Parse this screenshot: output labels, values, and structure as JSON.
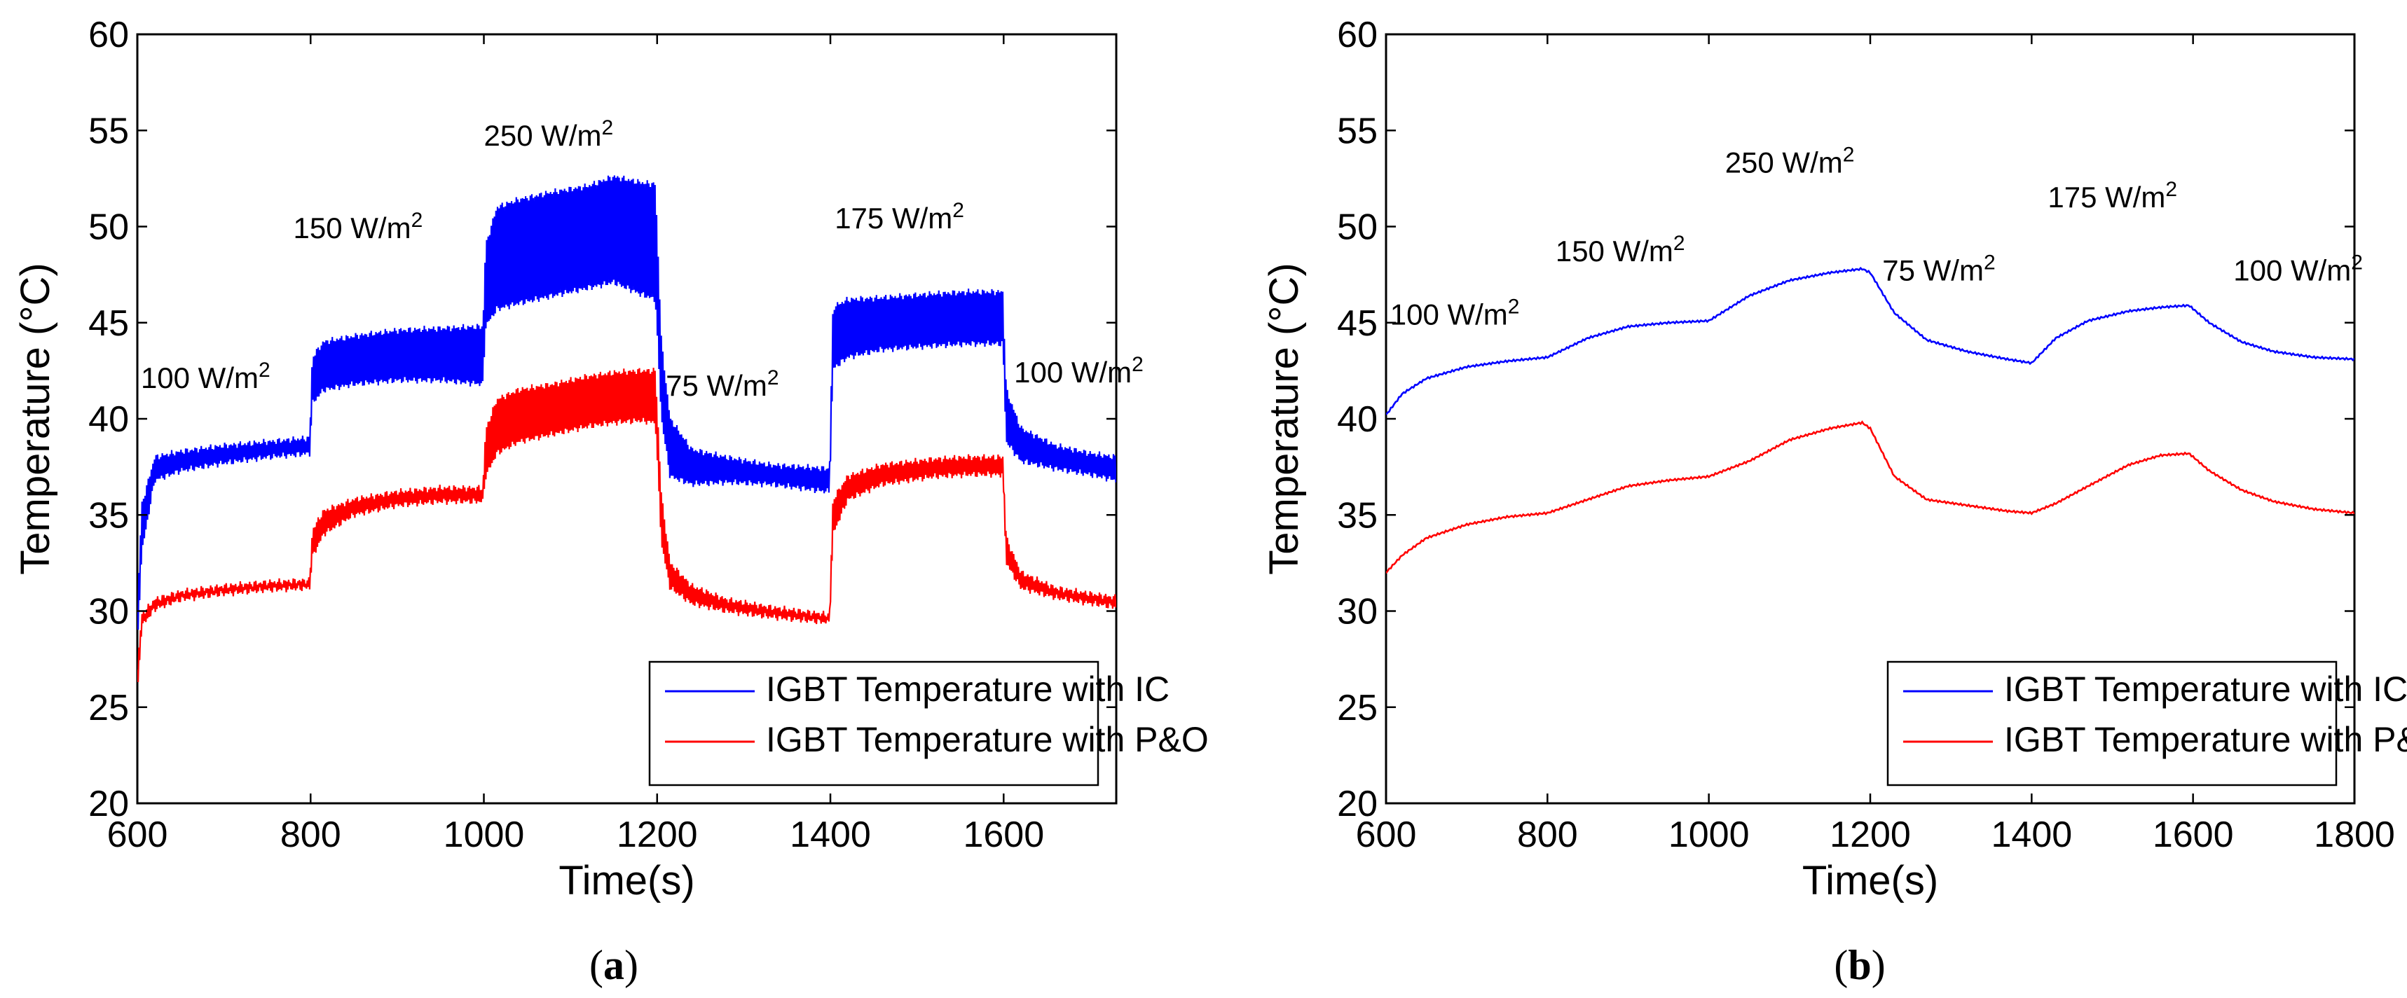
{
  "chart_data": [
    {
      "type": "line",
      "caption_prefix": "(",
      "caption_letter": "a",
      "caption_suffix": ")",
      "xlabel": "Time(s)",
      "ylabel": "Temperature (°C)",
      "xlim": [
        600,
        1730
      ],
      "ylim": [
        20,
        60
      ],
      "xticks": [
        600,
        800,
        1000,
        1200,
        1400,
        1600
      ],
      "yticks": [
        20,
        25,
        30,
        35,
        40,
        45,
        50,
        55,
        60
      ],
      "legend_position": "bottom-right",
      "noise": true,
      "annotations": [
        {
          "text": "100 W/m",
          "sup": "2",
          "x": 604,
          "y": 41.6
        },
        {
          "text": "150 W/m",
          "sup": "2",
          "x": 780,
          "y": 49.4
        },
        {
          "text": "250 W/m",
          "sup": "2",
          "x": 1000,
          "y": 54.2
        },
        {
          "text": "75 W/m",
          "sup": "2",
          "x": 1210,
          "y": 41.2
        },
        {
          "text": "175 W/m",
          "sup": "2",
          "x": 1405,
          "y": 49.9
        },
        {
          "text": "100 W/m",
          "sup": "2",
          "x": 1612,
          "y": 41.9
        }
      ],
      "series": [
        {
          "name": "IGBT Temperature with IC",
          "color": "#0000ff",
          "x": [
            600,
            605,
            620,
            650,
            700,
            750,
            799,
            802,
            815,
            850,
            900,
            950,
            999,
            1002,
            1015,
            1040,
            1080,
            1120,
            1150,
            1180,
            1198,
            1205,
            1215,
            1240,
            1280,
            1330,
            1399,
            1403,
            1420,
            1460,
            1520,
            1560,
            1599,
            1603,
            1620,
            1660,
            1700,
            1730
          ],
          "upper": [
            30.0,
            35.5,
            38.0,
            38.3,
            38.6,
            38.8,
            39.0,
            43.2,
            44.0,
            44.3,
            44.6,
            44.7,
            44.8,
            49.0,
            51.0,
            51.4,
            51.8,
            52.1,
            52.6,
            52.3,
            52.2,
            44.0,
            40.0,
            38.4,
            38.0,
            37.6,
            37.4,
            45.8,
            46.2,
            46.3,
            46.5,
            46.6,
            46.6,
            41.5,
            39.5,
            38.6,
            38.2,
            38.0
          ],
          "lower": [
            28.0,
            33.0,
            36.8,
            37.3,
            37.7,
            38.0,
            38.2,
            40.8,
            41.5,
            41.8,
            42.0,
            42.0,
            41.8,
            44.8,
            45.7,
            46.0,
            46.4,
            46.8,
            47.1,
            46.5,
            46.2,
            40.0,
            37.0,
            36.6,
            36.7,
            36.6,
            36.2,
            42.6,
            43.2,
            43.6,
            43.8,
            43.9,
            43.9,
            38.8,
            37.8,
            37.4,
            37.1,
            36.8
          ]
        },
        {
          "name": "IGBT Temperature with P&O",
          "color": "#ff0000",
          "x": [
            600,
            605,
            620,
            650,
            700,
            750,
            799,
            802,
            815,
            850,
            900,
            950,
            999,
            1002,
            1015,
            1040,
            1080,
            1120,
            1150,
            1180,
            1198,
            1205,
            1215,
            1240,
            1280,
            1330,
            1399,
            1403,
            1420,
            1460,
            1520,
            1560,
            1599,
            1603,
            1620,
            1660,
            1700,
            1730
          ],
          "upper": [
            27.0,
            29.8,
            30.6,
            31.0,
            31.3,
            31.5,
            31.6,
            34.2,
            35.2,
            35.8,
            36.2,
            36.4,
            36.4,
            39.4,
            41.0,
            41.5,
            41.8,
            42.2,
            42.4,
            42.5,
            42.5,
            36.0,
            32.5,
            31.3,
            30.6,
            30.2,
            29.8,
            35.8,
            37.0,
            37.6,
            37.9,
            38.0,
            38.0,
            33.8,
            32.0,
            31.2,
            30.9,
            30.7
          ],
          "lower": [
            25.5,
            29.2,
            30.1,
            30.6,
            30.9,
            31.1,
            31.2,
            32.8,
            34.0,
            35.0,
            35.5,
            35.7,
            35.7,
            37.0,
            38.2,
            38.8,
            39.2,
            39.6,
            39.8,
            39.9,
            39.8,
            33.5,
            31.2,
            30.4,
            30.0,
            29.7,
            29.4,
            34.0,
            35.8,
            36.6,
            37.0,
            37.1,
            37.1,
            32.5,
            31.2,
            30.7,
            30.4,
            30.2
          ]
        }
      ]
    },
    {
      "type": "line",
      "caption_prefix": "(",
      "caption_letter": "b",
      "caption_suffix": ")",
      "xlabel": "Time(s)",
      "ylabel": "Temperature (°C)",
      "xlim": [
        600,
        1800
      ],
      "ylim": [
        20,
        60
      ],
      "xticks": [
        600,
        800,
        1000,
        1200,
        1400,
        1600,
        1800
      ],
      "yticks": [
        20,
        25,
        30,
        35,
        40,
        45,
        50,
        55,
        60
      ],
      "legend_position": "bottom-right",
      "noise": false,
      "annotations": [
        {
          "text": "100 W/m",
          "sup": "2",
          "x": 605,
          "y": 44.9
        },
        {
          "text": "150 W/m",
          "sup": "2",
          "x": 810,
          "y": 48.2
        },
        {
          "text": "250 W/m",
          "sup": "2",
          "x": 1020,
          "y": 52.8
        },
        {
          "text": "75 W/m",
          "sup": "2",
          "x": 1215,
          "y": 47.2
        },
        {
          "text": "175 W/m",
          "sup": "2",
          "x": 1420,
          "y": 51.0
        },
        {
          "text": "100 W/m",
          "sup": "2",
          "x": 1650,
          "y": 47.2
        }
      ],
      "series": [
        {
          "name": "IGBT Temperature with IC",
          "color": "#0000ff",
          "x": [
            600,
            620,
            650,
            700,
            750,
            800,
            850,
            900,
            950,
            1000,
            1050,
            1100,
            1150,
            1190,
            1200,
            1230,
            1270,
            1320,
            1370,
            1400,
            1430,
            1470,
            1520,
            1560,
            1595,
            1620,
            1660,
            1700,
            1750,
            1800
          ],
          "y": [
            40.2,
            41.3,
            42.1,
            42.7,
            43.0,
            43.2,
            44.2,
            44.8,
            45.0,
            45.1,
            46.4,
            47.2,
            47.6,
            47.8,
            47.6,
            45.5,
            44.1,
            43.5,
            43.1,
            42.9,
            44.2,
            45.1,
            45.6,
            45.8,
            45.9,
            45.0,
            44.0,
            43.5,
            43.2,
            43.1
          ]
        },
        {
          "name": "IGBT Temperature with P&O",
          "color": "#ff0000",
          "x": [
            600,
            620,
            650,
            700,
            750,
            800,
            850,
            900,
            950,
            1000,
            1050,
            1100,
            1150,
            1190,
            1200,
            1230,
            1270,
            1320,
            1370,
            1400,
            1430,
            1470,
            1520,
            1560,
            1595,
            1620,
            1660,
            1700,
            1750,
            1800
          ],
          "y": [
            32.0,
            32.9,
            33.8,
            34.5,
            34.9,
            35.1,
            35.8,
            36.5,
            36.8,
            37.0,
            37.8,
            38.9,
            39.5,
            39.8,
            39.5,
            37.0,
            35.8,
            35.5,
            35.2,
            35.1,
            35.6,
            36.5,
            37.6,
            38.1,
            38.2,
            37.3,
            36.3,
            35.7,
            35.3,
            35.1
          ]
        }
      ]
    }
  ]
}
